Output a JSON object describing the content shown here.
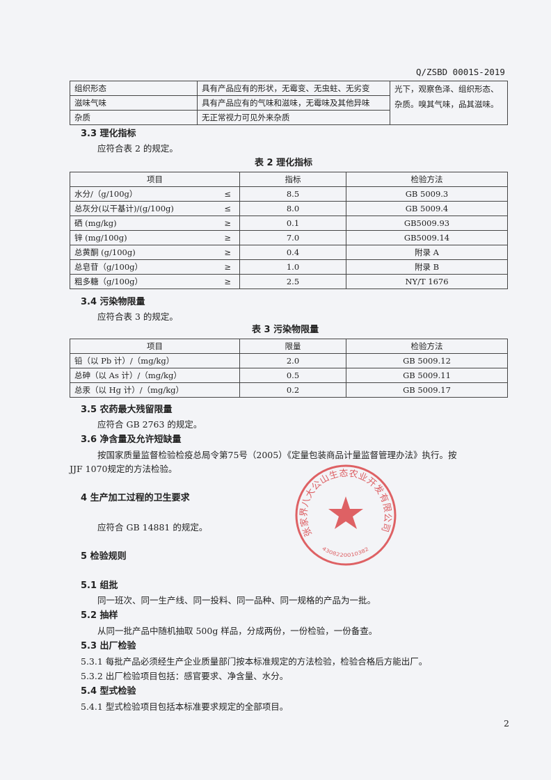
{
  "header": {
    "doc_code": "Q/ZSBD 0001S-2019"
  },
  "table1": {
    "rows": [
      {
        "item": "组织形态",
        "requirement": "具有产品应有的形状，无霉变、无虫蛀、无劣变"
      },
      {
        "item": "滋味气味",
        "requirement": "具有产品应有的气味和滋味，无霉味及其他异味"
      },
      {
        "item": "杂质",
        "requirement": "无正常视力可见外来杂质"
      }
    ],
    "method_lines": [
      "光下，观察色泽、组织形态、",
      "杂质。嗅其气味，品其滋味。"
    ]
  },
  "s33": {
    "heading": "3.3  理化指标",
    "text": "应符合表 2 的规定。"
  },
  "table2": {
    "caption": "表 2  理化指标",
    "headers": [
      "项目",
      "指标",
      "检验方法"
    ],
    "rows": [
      {
        "item": "水分/（g/100g）",
        "rel": "≤",
        "value": "8.5",
        "method": "GB 5009.3"
      },
      {
        "item": "总灰分(以干基计)/(g/100g)",
        "rel": "≤",
        "value": "8.0",
        "method": "GB 5009.4"
      },
      {
        "item": "硒  (mg/kg)",
        "rel": "≥",
        "value": "0.1",
        "method": "GB5009.93"
      },
      {
        "item": "锌    (mg/100g)",
        "rel": "≥",
        "value": "7.0",
        "method": "GB5009.14"
      },
      {
        "item": "总黄酮  (g/100g)",
        "rel": "≥",
        "value": "0.4",
        "method": "附录 A"
      },
      {
        "item": "总皂苷（g/100g）",
        "rel": "≥",
        "value": "1.0",
        "method": "附录 B"
      },
      {
        "item": "粗多糖（g/100g）",
        "rel": "≥",
        "value": "2.5",
        "method": "NY/T 1676"
      }
    ]
  },
  "s34": {
    "heading": "3.4  污染物限量",
    "text": "应符合表 3 的规定。"
  },
  "table3": {
    "caption": "表 3  污染物限量",
    "headers": [
      "项目",
      "限量",
      "检验方法"
    ],
    "rows": [
      {
        "item": "铅（以 Pb 计）/（mg/kg）",
        "value": "2.0",
        "method": "GB 5009.12"
      },
      {
        "item": "总砷（以 As 计）/（mg/kg）",
        "value": "0.5",
        "method": "GB 5009.11"
      },
      {
        "item": "总汞（以 Hg 计）/（mg/kg）",
        "value": "0.2",
        "method": "GB 5009.17"
      }
    ]
  },
  "s35": {
    "heading": "3.5 农药最大残留限量",
    "text": "应符合 GB 2763 的规定。"
  },
  "s36": {
    "heading": "3.6  净含量及允许短缺量",
    "text1": "按国家质量监督检验检疫总局令第75号（2005）《定量包装商品计量监督管理办法》执行。按",
    "text2": "JJF 1070规定的方法检验。"
  },
  "s4": {
    "heading": "4   生产加工过程的卫生要求",
    "text": "应符合 GB 14881 的规定。"
  },
  "s5": {
    "heading": "5   检验规则"
  },
  "s51": {
    "heading": "5.1  组批",
    "text": "同一班次、同一生产线、同一投料、同一品种、同一规格的产品为一批。"
  },
  "s52": {
    "heading": "5.2  抽样",
    "text": "从同一批产品中随机抽取 500g 样品，分成两份，一份检验，一份备查。"
  },
  "s53": {
    "heading": "5.3 出厂检验",
    "i1": "5.3.1   每批产品必须经生产企业质量部门按本标准规定的方法检验，检验合格后方能出厂。",
    "i2": "5.3.2   出厂检验项目包括：感官要求、净含量、水分。"
  },
  "s54": {
    "heading": "5.4  型式检验",
    "i1": "5.4.1   型式检验项目包括本标准要求规定的全部项目。"
  },
  "stamp": {
    "text": "张家界八大公山生态农业开发有限公司",
    "number": "4308220010382",
    "color": "#d9464a"
  },
  "page_number": "2"
}
